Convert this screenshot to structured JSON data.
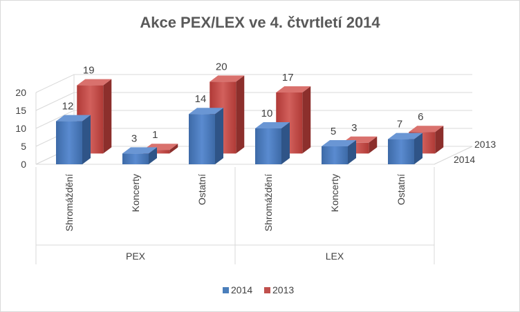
{
  "chart_data": {
    "type": "bar",
    "title": "Akce PEX/LEX ve 4. čtvrtletí 2014",
    "categories": [
      "Shromáždění",
      "Koncerty",
      "Ostatní",
      "Shromáždění",
      "Koncerty",
      "Ostatní"
    ],
    "groups": [
      "PEX",
      "LEX"
    ],
    "series": [
      {
        "name": "2014",
        "values": [
          12,
          3,
          14,
          10,
          5,
          7
        ],
        "color": "#4a7ebb"
      },
      {
        "name": "2013",
        "values": [
          19,
          1,
          20,
          17,
          3,
          6
        ],
        "color": "#c0504d"
      }
    ],
    "depth_labels": [
      "2013",
      "2014"
    ],
    "yticks": [
      "0",
      "5",
      "10",
      "15",
      "20"
    ],
    "ylim": [
      0,
      20
    ],
    "grid": true,
    "legend_position": "bottom",
    "legend": [
      "2014",
      "2013"
    ]
  }
}
